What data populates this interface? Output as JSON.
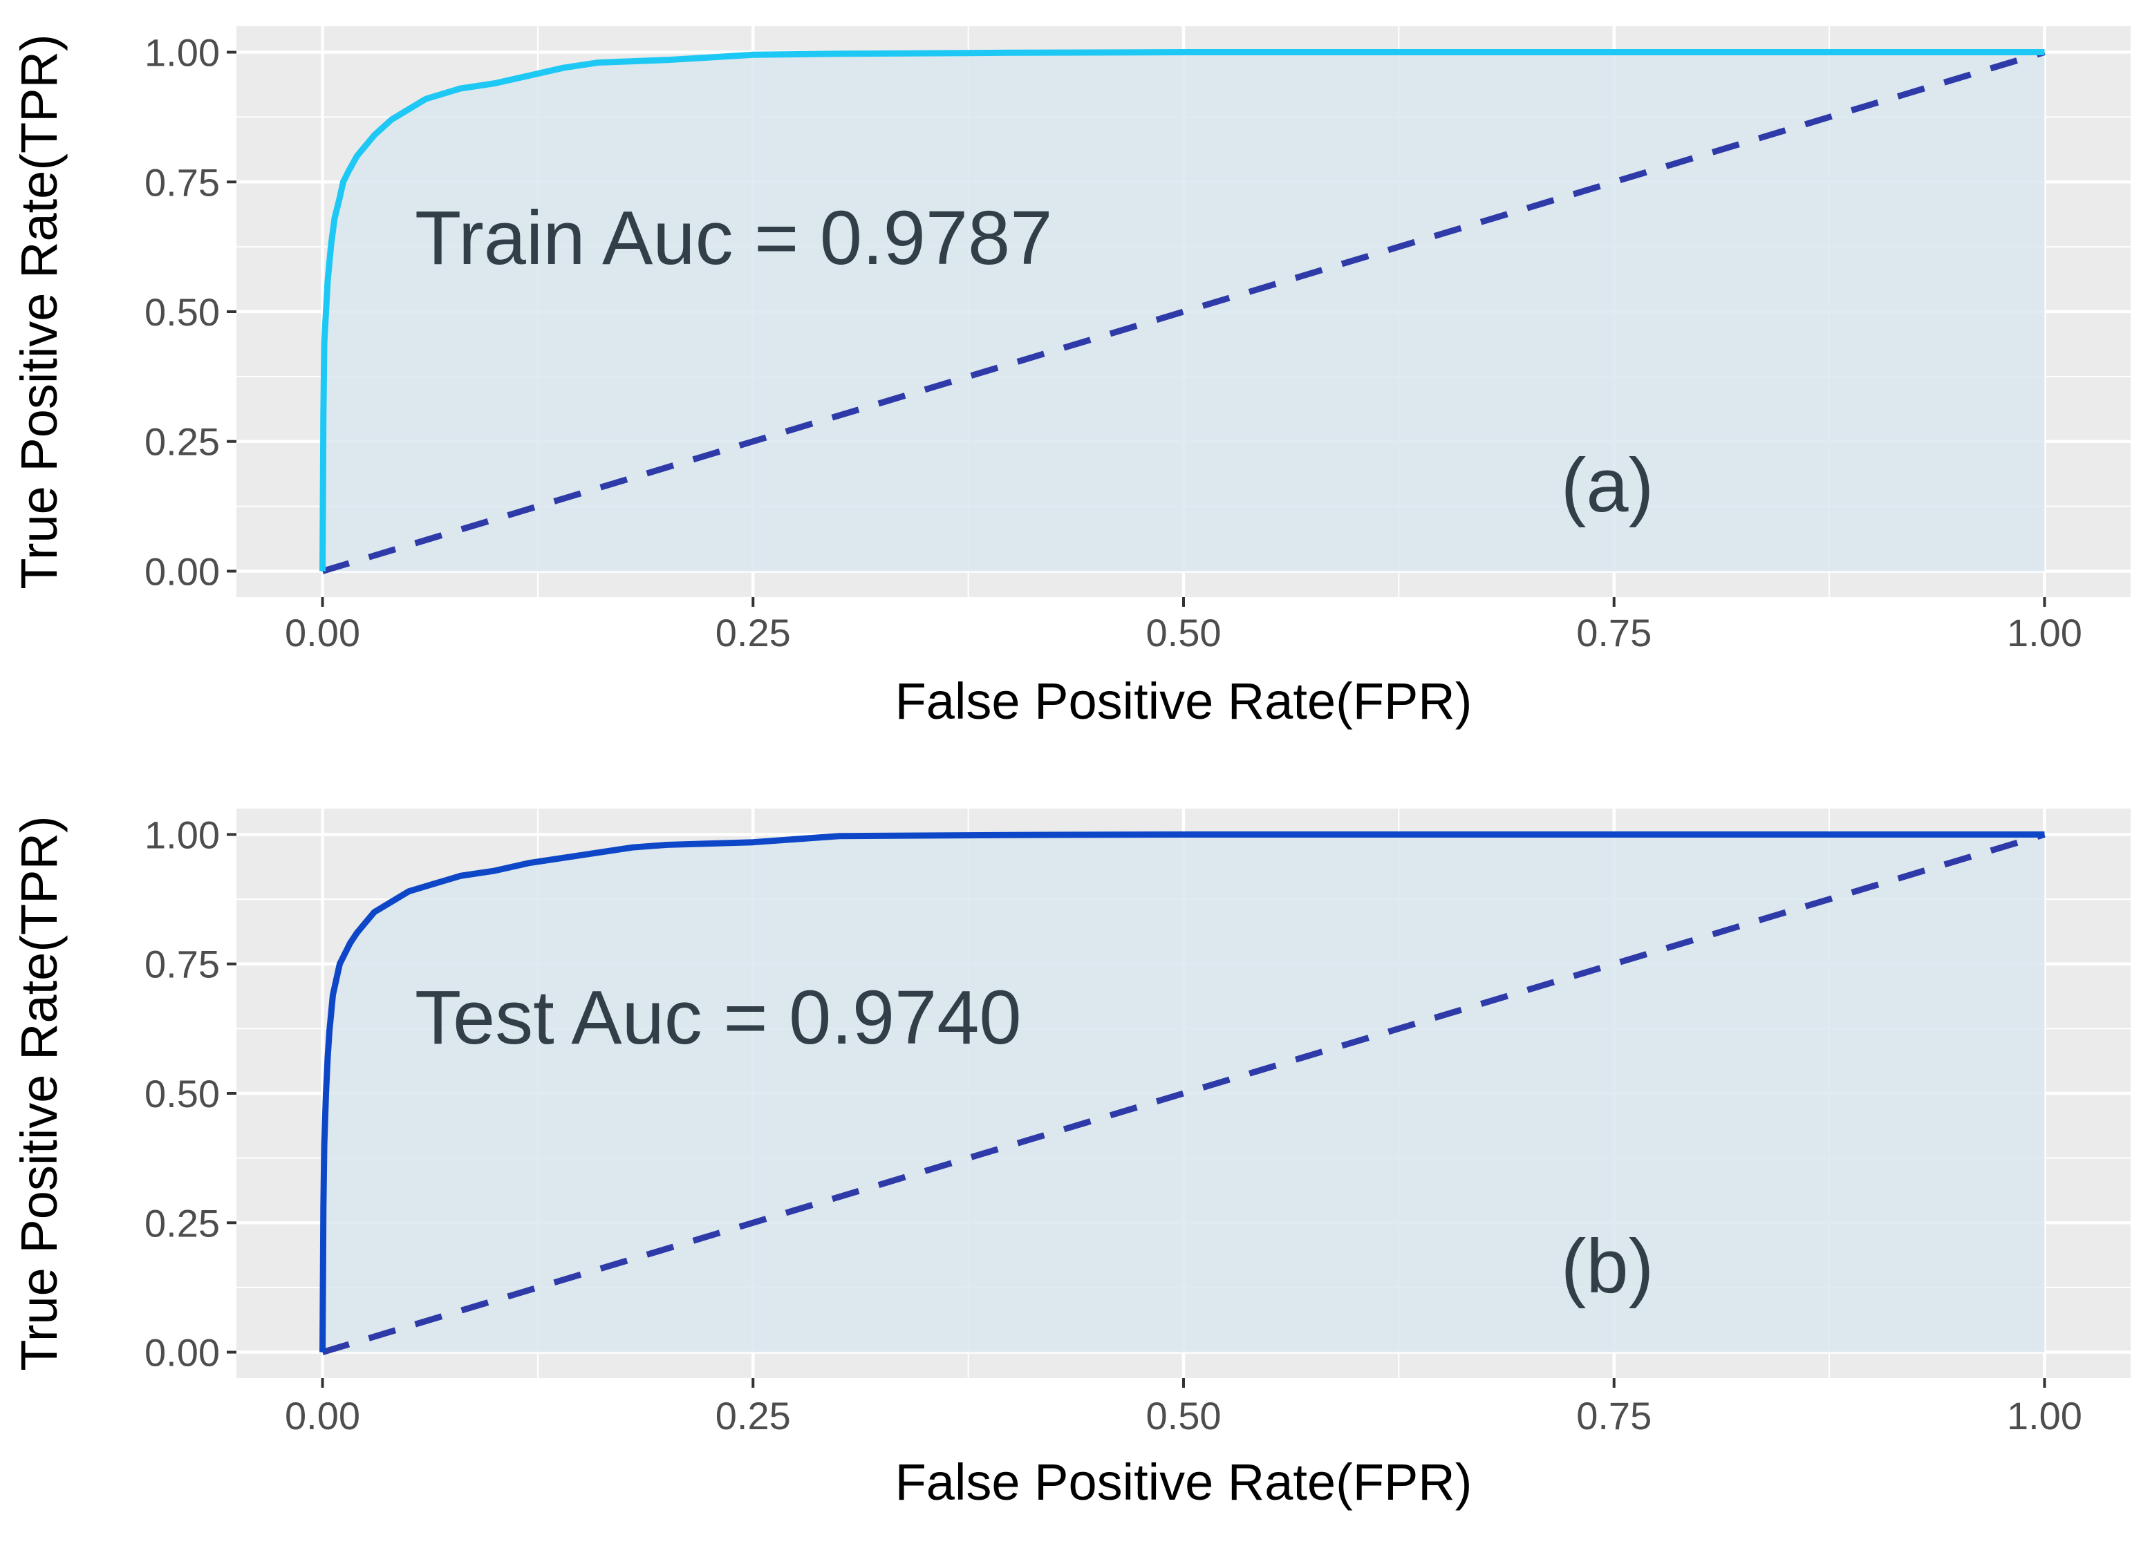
{
  "chart_data": [
    {
      "type": "line",
      "panel_label": "(a)",
      "annotation": "Train Auc = 0.9787",
      "xlabel": "False Positive Rate(FPR)",
      "ylabel": "True Positive Rate(TPR)",
      "xlim": [
        -0.05,
        1.05
      ],
      "ylim": [
        -0.05,
        1.05
      ],
      "x_ticks": [
        "0.00",
        "0.25",
        "0.50",
        "0.75",
        "1.00"
      ],
      "y_ticks": [
        "0.00",
        "0.25",
        "0.50",
        "0.75",
        "1.00"
      ],
      "grid": true,
      "roc_color": "#1ec8f5",
      "area_fill": "#d9e6ef",
      "series": [
        {
          "x": [
            0,
            0.0005,
            0.001,
            0.002,
            0.003,
            0.005,
            0.007,
            0.01,
            0.012,
            0.015,
            0.02,
            0.025,
            0.03,
            0.04,
            0.05,
            0.06,
            0.07,
            0.08,
            0.09,
            0.1,
            0.12,
            0.14,
            0.16,
            0.2,
            0.25,
            0.3,
            0.4,
            0.5,
            0.6,
            0.75,
            1.0
          ],
          "y": [
            0,
            0.3,
            0.44,
            0.5,
            0.56,
            0.63,
            0.68,
            0.72,
            0.75,
            0.77,
            0.8,
            0.82,
            0.84,
            0.87,
            0.89,
            0.91,
            0.92,
            0.93,
            0.935,
            0.94,
            0.955,
            0.97,
            0.98,
            0.985,
            0.995,
            0.997,
            0.999,
            1.0,
            1.0,
            1.0,
            1.0
          ]
        },
        {
          "x": [
            0,
            1
          ],
          "y": [
            0,
            1
          ]
        }
      ]
    },
    {
      "type": "line",
      "panel_label": "(b)",
      "annotation": "Test Auc = 0.9740",
      "xlabel": "False Positive Rate(FPR)",
      "ylabel": "True Positive Rate(TPR)",
      "xlim": [
        -0.05,
        1.05
      ],
      "ylim": [
        -0.05,
        1.05
      ],
      "x_ticks": [
        "0.00",
        "0.25",
        "0.50",
        "0.75",
        "1.00"
      ],
      "y_ticks": [
        "0.00",
        "0.25",
        "0.50",
        "0.75",
        "1.00"
      ],
      "grid": true,
      "roc_color": "#0d47c8",
      "area_fill": "#d9e6ef",
      "series": [
        {
          "x": [
            0,
            0.0005,
            0.001,
            0.002,
            0.003,
            0.004,
            0.006,
            0.008,
            0.01,
            0.013,
            0.016,
            0.02,
            0.025,
            0.03,
            0.04,
            0.05,
            0.06,
            0.07,
            0.08,
            0.1,
            0.12,
            0.14,
            0.16,
            0.18,
            0.2,
            0.25,
            0.3,
            0.4,
            0.5,
            0.75,
            1.0
          ],
          "y": [
            0,
            0.28,
            0.4,
            0.5,
            0.57,
            0.62,
            0.69,
            0.72,
            0.75,
            0.77,
            0.79,
            0.81,
            0.83,
            0.85,
            0.87,
            0.89,
            0.9,
            0.91,
            0.92,
            0.93,
            0.945,
            0.955,
            0.965,
            0.975,
            0.98,
            0.985,
            0.997,
            0.999,
            1.0,
            1.0,
            1.0
          ]
        },
        {
          "x": [
            0,
            1
          ],
          "y": [
            0,
            1
          ]
        }
      ]
    }
  ]
}
